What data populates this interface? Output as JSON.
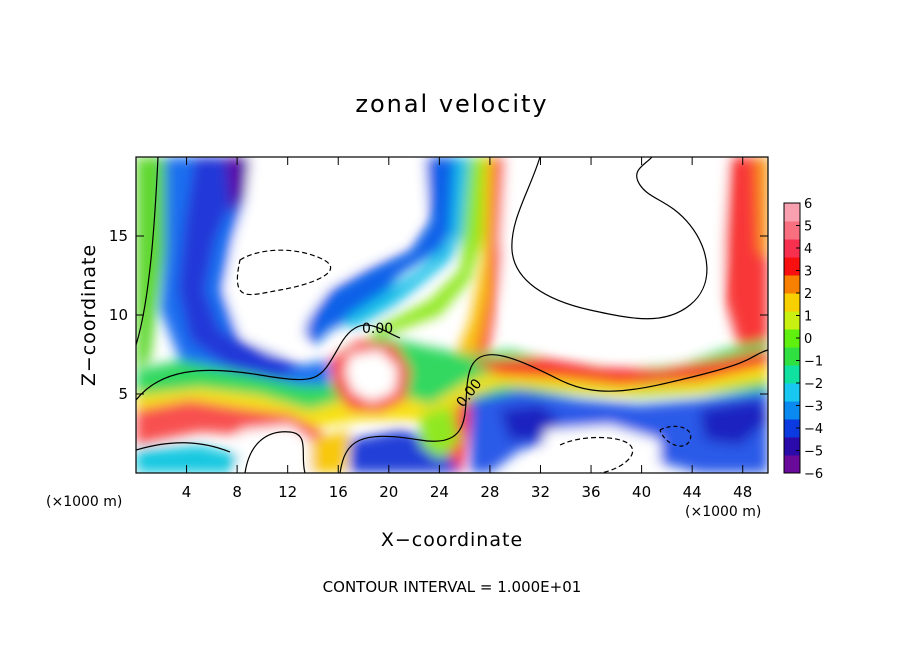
{
  "chart_data": {
    "type": "heatmap",
    "title": "zonal velocity",
    "xlabel": "X−coordinate",
    "ylabel": "Z−coordinate",
    "x_unit_label": "(×1000 m)",
    "x_unit_label_right": "(×1000 m)",
    "xlim": [
      0,
      50
    ],
    "ylim": [
      0,
      20
    ],
    "xticks": [
      4,
      8,
      12,
      16,
      20,
      24,
      28,
      32,
      36,
      40,
      44,
      48
    ],
    "yticks": [
      5,
      10,
      15
    ],
    "colorbar": {
      "ticks": [
        6,
        5,
        4,
        3,
        2,
        1,
        0,
        -1,
        -2,
        -3,
        -4,
        -5,
        -6
      ],
      "tick_labels": [
        "6",
        "5",
        "4",
        "3",
        "2",
        "1",
        "0",
        "−1",
        "−2",
        "−3",
        "−4",
        "−5",
        "−6"
      ],
      "range": [
        -6,
        6
      ],
      "placement": "right",
      "colors": [
        "#6a0a9a",
        "#2a0aa8",
        "#0a3ae0",
        "#0a8af0",
        "#18c8f0",
        "#10e0a0",
        "#30e040",
        "#60f010",
        "#c8f010",
        "#f8d000",
        "#f88000",
        "#f81010",
        "#f83050",
        "#f87080",
        "#f8a0b0"
      ]
    },
    "contour_labels": [
      "0.00",
      "0.00"
    ],
    "contour_note": "CONTOUR INTERVAL = 1.000E+01",
    "grid": false
  }
}
